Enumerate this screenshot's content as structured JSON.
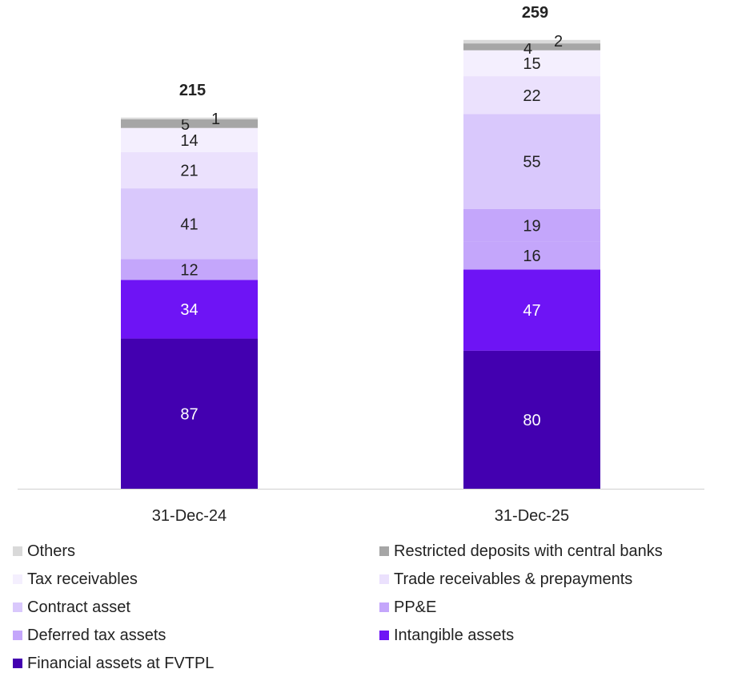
{
  "chart_data": {
    "type": "bar",
    "stacked": true,
    "categories": [
      "31-Dec-24",
      "31-Dec-25"
    ],
    "totals": [
      215,
      259
    ],
    "series": [
      {
        "name": "Financial assets at FVTPL",
        "values": [
          87,
          80
        ],
        "color": "#4300b0",
        "label_color": "#ffffff"
      },
      {
        "name": "Intangible assets",
        "values": [
          34,
          47
        ],
        "color": "#6e14f5",
        "label_color": "#ffffff"
      },
      {
        "name": "Deferred tax assets",
        "values": [
          12,
          16
        ],
        "color": "#c4a6fb",
        "label_color": "#222222"
      },
      {
        "name": "PP&E",
        "values": [
          0,
          19
        ],
        "color": "#c4a6fb",
        "label_color": "#222222"
      },
      {
        "name": "Contract asset",
        "values": [
          41,
          55
        ],
        "color": "#d9c8fc",
        "label_color": "#222222"
      },
      {
        "name": "Trade receivables & prepayments",
        "values": [
          21,
          22
        ],
        "color": "#ebe1fd",
        "label_color": "#222222"
      },
      {
        "name": "Tax receivables",
        "values": [
          14,
          15
        ],
        "color": "#f4effe",
        "label_color": "#222222"
      },
      {
        "name": "Restricted deposits with central banks",
        "values": [
          5,
          4
        ],
        "color": "#a6a6a6",
        "label_color": "#222222"
      },
      {
        "name": "Others",
        "values": [
          1,
          2
        ],
        "color": "#d9d9d9",
        "label_color": "#222222"
      }
    ],
    "legend_order": [
      "Others",
      "Restricted deposits with central banks",
      "Tax receivables",
      "Trade receivables & prepayments",
      "Contract asset",
      "PP&E",
      "Deferred tax assets",
      "Intangible assets",
      "Financial assets at FVTPL"
    ],
    "ylim": [
      0,
      259
    ],
    "legend_position": "bottom",
    "grid": false
  }
}
